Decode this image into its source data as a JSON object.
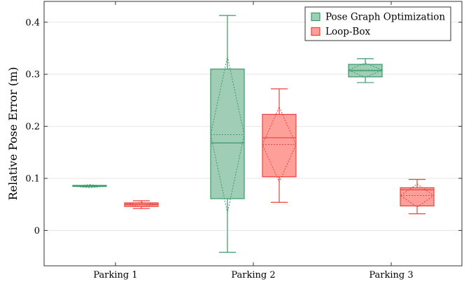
{
  "chart_data": {
    "type": "box",
    "ylabel": "Relative Pose Error (m)",
    "ylim": [
      -0.068,
      0.44
    ],
    "yticks": [
      0,
      0.1,
      0.2,
      0.3,
      0.4
    ],
    "ytick_labels": [
      "0",
      "0.1",
      "0.2",
      "0.3",
      "0.4"
    ],
    "grid": "horizontal",
    "legend_position": "top-right",
    "categories": [
      "Parking 1",
      "Parking 2",
      "Parking 3"
    ],
    "series": [
      {
        "name": "Pose Graph Optimization",
        "color": "#3a9a6a",
        "fill": "#9fcdb5",
        "boxes": [
          {
            "whisker_low": 0.084,
            "q1": 0.0845,
            "median": 0.085,
            "q3": 0.0855,
            "whisker_high": 0.086,
            "mean": 0.085,
            "std": 0.003
          },
          {
            "whisker_low": -0.042,
            "q1": 0.061,
            "median": 0.168,
            "q3": 0.31,
            "whisker_high": 0.413,
            "mean": 0.184,
            "std": 0.15
          },
          {
            "whisker_low": 0.284,
            "q1": 0.295,
            "median": 0.307,
            "q3": 0.319,
            "whisker_high": 0.33,
            "mean": 0.308,
            "std": 0.014
          }
        ]
      },
      {
        "name": "Loop-Box",
        "color": "#e8423c",
        "fill": "#ff9f9a",
        "boxes": [
          {
            "whisker_low": 0.042,
            "q1": 0.046,
            "median": 0.05,
            "q3": 0.053,
            "whisker_high": 0.057,
            "mean": 0.05,
            "std": 0.004
          },
          {
            "whisker_low": 0.054,
            "q1": 0.103,
            "median": 0.178,
            "q3": 0.223,
            "whisker_high": 0.272,
            "mean": 0.165,
            "std": 0.072
          },
          {
            "whisker_low": 0.032,
            "q1": 0.047,
            "median": 0.078,
            "q3": 0.082,
            "whisker_high": 0.098,
            "mean": 0.067,
            "std": 0.022
          }
        ]
      }
    ]
  }
}
